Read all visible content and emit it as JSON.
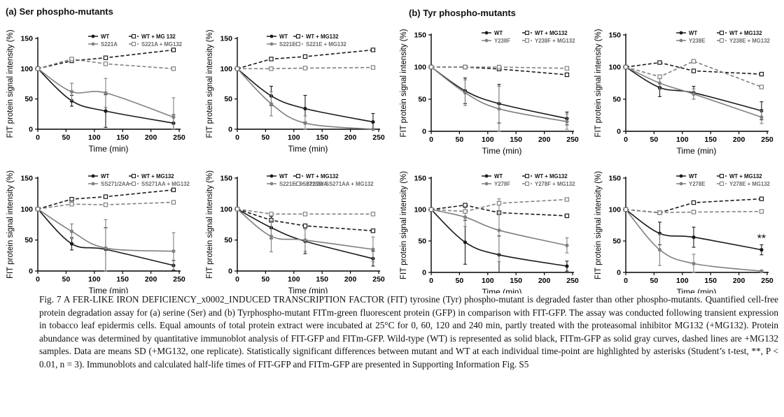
{
  "panels": {
    "a_label": "(a)",
    "a_title": "Ser phospho-mutants",
    "b_label": "(b)",
    "b_title": "Tyr phospho-mutants"
  },
  "axis_labels": {
    "x": "Time (min)",
    "y": "FIT protein signal intensity (%)"
  },
  "chart_data": [
    {
      "type": "line",
      "x": [
        0,
        60,
        120,
        240
      ],
      "xlim": [
        0,
        250
      ],
      "ylim": [
        0,
        150
      ],
      "xticks": [
        0,
        50,
        100,
        150,
        200,
        250
      ],
      "yticks": [
        0,
        50,
        100,
        150
      ],
      "series": [
        {
          "name": "WT",
          "values": [
            100,
            47,
            30,
            10
          ],
          "err": [
            0,
            9,
            27,
            14
          ],
          "color": "#1a1a1a",
          "dashed": false,
          "marker": "filled"
        },
        {
          "name": "WT + MG 132",
          "values": [
            100,
            113,
            118,
            131
          ],
          "color": "#1a1a1a",
          "dashed": true,
          "marker": "open"
        },
        {
          "name": "S221A",
          "values": [
            100,
            62,
            60,
            20
          ],
          "err": [
            0,
            14,
            24,
            32
          ],
          "color": "#808080",
          "dashed": false,
          "marker": "filled"
        },
        {
          "name": "S221A + MG132",
          "values": [
            100,
            116,
            108,
            100
          ],
          "color": "#808080",
          "dashed": true,
          "marker": "open"
        }
      ]
    },
    {
      "type": "line",
      "x": [
        0,
        60,
        120,
        240
      ],
      "xlim": [
        0,
        250
      ],
      "ylim": [
        0,
        150
      ],
      "xticks": [
        0,
        50,
        100,
        150,
        200,
        250
      ],
      "yticks": [
        0,
        50,
        100,
        150
      ],
      "series": [
        {
          "name": "WT",
          "values": [
            100,
            55,
            34,
            12
          ],
          "err": [
            0,
            16,
            22,
            14
          ],
          "color": "#1a1a1a",
          "dashed": false,
          "marker": "filled"
        },
        {
          "name": "WT + MG132",
          "values": [
            100,
            116,
            120,
            131
          ],
          "color": "#1a1a1a",
          "dashed": true,
          "marker": "open"
        },
        {
          "name": "S221E",
          "values": [
            100,
            42,
            10,
            0
          ],
          "err": [
            0,
            20,
            12,
            0
          ],
          "color": "#808080",
          "dashed": false,
          "marker": "filled"
        },
        {
          "name": "S221E + MG132",
          "values": [
            100,
            100,
            101,
            102
          ],
          "color": "#808080",
          "dashed": true,
          "marker": "open"
        }
      ]
    },
    {
      "type": "line",
      "x": [
        0,
        60,
        120,
        240
      ],
      "xlim": [
        0,
        250
      ],
      "ylim": [
        0,
        150
      ],
      "xticks": [
        0,
        50,
        100,
        150,
        200,
        250
      ],
      "yticks": [
        0,
        50,
        100,
        150
      ],
      "series": [
        {
          "name": "WT",
          "values": [
            100,
            63,
            43,
            20
          ],
          "err": [
            0,
            20,
            30,
            10
          ],
          "color": "#1a1a1a",
          "dashed": false,
          "marker": "filled"
        },
        {
          "name": "WT + MG132",
          "values": [
            100,
            100,
            97,
            88
          ],
          "color": "#1a1a1a",
          "dashed": true,
          "marker": "open"
        },
        {
          "name": "Y238F",
          "values": [
            100,
            60,
            35,
            15
          ],
          "err": [
            0,
            20,
            35,
            12
          ],
          "color": "#808080",
          "dashed": false,
          "marker": "filled"
        },
        {
          "name": "Y238F + MG132",
          "values": [
            100,
            100,
            100,
            98
          ],
          "color": "#808080",
          "dashed": true,
          "marker": "open"
        }
      ]
    },
    {
      "type": "line",
      "x": [
        0,
        60,
        120,
        240
      ],
      "xlim": [
        0,
        250
      ],
      "ylim": [
        0,
        150
      ],
      "xticks": [
        0,
        50,
        100,
        150,
        200,
        250
      ],
      "yticks": [
        0,
        50,
        100,
        150
      ],
      "series": [
        {
          "name": "WT",
          "values": [
            100,
            68,
            60,
            32
          ],
          "err": [
            0,
            14,
            10,
            14
          ],
          "color": "#1a1a1a",
          "dashed": false,
          "marker": "filled"
        },
        {
          "name": "WT + MG132",
          "values": [
            100,
            107,
            94,
            89
          ],
          "color": "#1a1a1a",
          "dashed": true,
          "marker": "open"
        },
        {
          "name": "Y238E",
          "values": [
            100,
            75,
            58,
            22
          ],
          "err": [
            0,
            10,
            8,
            10
          ],
          "color": "#808080",
          "dashed": false,
          "marker": "filled"
        },
        {
          "name": "Y238E + MG132",
          "values": [
            100,
            85,
            109,
            69
          ],
          "color": "#808080",
          "dashed": true,
          "marker": "open"
        }
      ]
    },
    {
      "type": "line",
      "x": [
        0,
        60,
        120,
        240
      ],
      "xlim": [
        0,
        250
      ],
      "ylim": [
        0,
        150
      ],
      "xticks": [
        0,
        50,
        100,
        150,
        200,
        250
      ],
      "yticks": [
        0,
        50,
        100,
        150
      ],
      "series": [
        {
          "name": "WT",
          "values": [
            100,
            44,
            35,
            9
          ],
          "err": [
            0,
            10,
            35,
            8
          ],
          "color": "#1a1a1a",
          "dashed": false,
          "marker": "filled"
        },
        {
          "name": "WT + MG132",
          "values": [
            100,
            116,
            120,
            131
          ],
          "color": "#1a1a1a",
          "dashed": true,
          "marker": "open"
        },
        {
          "name": "SS271/2AA",
          "values": [
            100,
            64,
            37,
            32
          ],
          "err": [
            0,
            12,
            46,
            30
          ],
          "color": "#808080",
          "dashed": false,
          "marker": "filled"
        },
        {
          "name": "SS271AA + MG132",
          "values": [
            100,
            108,
            107,
            111
          ],
          "color": "#808080",
          "dashed": true,
          "marker": "open"
        }
      ]
    },
    {
      "type": "line",
      "x": [
        0,
        60,
        120,
        240
      ],
      "xlim": [
        0,
        250
      ],
      "ylim": [
        0,
        150
      ],
      "xticks": [
        0,
        50,
        100,
        150,
        200,
        250
      ],
      "yticks": [
        0,
        50,
        100,
        150
      ],
      "series": [
        {
          "name": "WT",
          "values": [
            100,
            70,
            48,
            20
          ],
          "err": [
            0,
            18,
            20,
            12
          ],
          "color": "#1a1a1a",
          "dashed": false,
          "marker": "filled"
        },
        {
          "name": "WT + MG132",
          "values": [
            100,
            82,
            73,
            65
          ],
          "color": "#1a1a1a",
          "dashed": true,
          "marker": "open"
        },
        {
          "name": "S221E/ SS271/2AA",
          "values": [
            100,
            56,
            50,
            35
          ],
          "err": [
            0,
            25,
            18,
            20
          ],
          "color": "#808080",
          "dashed": false,
          "marker": "filled"
        },
        {
          "name": "S221E/ SS271AA + MG132",
          "values": [
            100,
            92,
            92,
            92
          ],
          "color": "#808080",
          "dashed": true,
          "marker": "open"
        }
      ]
    },
    {
      "type": "line",
      "x": [
        0,
        60,
        120,
        240
      ],
      "xlim": [
        0,
        250
      ],
      "ylim": [
        0,
        150
      ],
      "xticks": [
        0,
        50,
        100,
        150,
        200,
        250
      ],
      "yticks": [
        0,
        50,
        100,
        150
      ],
      "series": [
        {
          "name": "WT",
          "values": [
            100,
            48,
            28,
            10
          ],
          "err": [
            0,
            35,
            30,
            8
          ],
          "color": "#1a1a1a",
          "dashed": false,
          "marker": "filled"
        },
        {
          "name": "WT + MG132",
          "values": [
            100,
            107,
            95,
            90
          ],
          "color": "#1a1a1a",
          "dashed": true,
          "marker": "open"
        },
        {
          "name": "Y278F",
          "values": [
            100,
            88,
            67,
            43
          ],
          "err": [
            0,
            15,
            50,
            12
          ],
          "color": "#808080",
          "dashed": false,
          "marker": "filled"
        },
        {
          "name": "Y278F + MG132",
          "values": [
            100,
            97,
            110,
            116
          ],
          "color": "#808080",
          "dashed": true,
          "marker": "open"
        }
      ]
    },
    {
      "type": "line",
      "x": [
        0,
        60,
        120,
        240
      ],
      "xlim": [
        0,
        250
      ],
      "ylim": [
        0,
        150
      ],
      "xticks": [
        0,
        50,
        100,
        150,
        200,
        250
      ],
      "yticks": [
        0,
        50,
        100,
        150
      ],
      "annotation": "**",
      "series": [
        {
          "name": "WT",
          "values": [
            100,
            62,
            56,
            36
          ],
          "err": [
            0,
            18,
            16,
            8
          ],
          "color": "#1a1a1a",
          "dashed": false,
          "marker": "filled"
        },
        {
          "name": "WT + MG132",
          "values": [
            100,
            95,
            111,
            117
          ],
          "color": "#1a1a1a",
          "dashed": true,
          "marker": "open"
        },
        {
          "name": "Y278E",
          "values": [
            100,
            36,
            14,
            2
          ],
          "err": [
            0,
            25,
            15,
            2
          ],
          "color": "#808080",
          "dashed": false,
          "marker": "filled"
        },
        {
          "name": "Y278E + MG132",
          "values": [
            100,
            95,
            96,
            97
          ],
          "color": "#808080",
          "dashed": true,
          "marker": "open"
        }
      ]
    }
  ],
  "caption": "Fig. 7 A FER-LIKE IRON DEFICIENCY_x0002_INDUCED TRANSCRIPTION FACTOR (FIT) tyrosine (Tyr) phospho-mutant is degraded faster than other phospho-mutants. Quantified cell-free protein degradation assay for (a) serine (Ser) and (b) Tyrphospho-mutant FITm-green fluorescent protein (GFP) in comparison with FIT-GFP. The assay was conducted following transient expression in tobacco leaf epidermis cells. Equal amounts of total protein extract were incubated at 25°C for 0, 60, 120 and 240 min, partly treated with the proteasomal inhibitor MG132 (+MG132). Protein abundance was determined by quantitative immunoblot analysis of FIT-GFP and FITm-GFP. Wild-type (WT) is represented as solid black, FITm-GFP as solid gray curves, dashed lines are +MG132 samples. Data are means SD (+MG132, one replicate). Statistically significant differences between mutant and WT at each individual time-point are highlighted by asterisks (Student’s t-test, **, P < 0.01, n = 3). Immunoblots and calculated half-life times of FIT-GFP and FITm-GFP are presented in Supporting Information Fig. S5"
}
